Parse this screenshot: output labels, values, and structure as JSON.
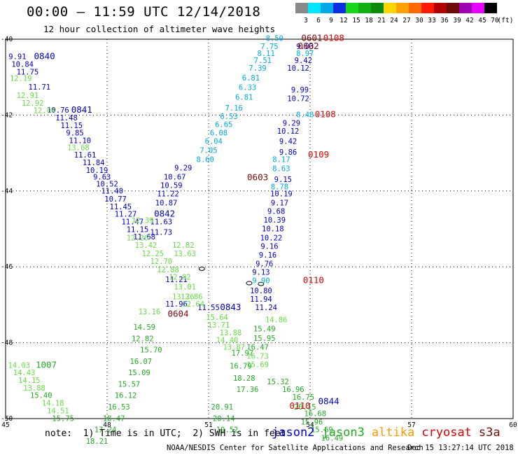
{
  "header": {
    "title": "00:00 – 11:59 UTC 12/14/2018",
    "subtitle": "12 hour collection of altimeter wave heights"
  },
  "colorbar": {
    "values": [
      "3",
      "6",
      "9",
      "12",
      "15",
      "18",
      "21",
      "24",
      "27",
      "30",
      "33",
      "36",
      "39",
      "42",
      "45",
      "70"
    ],
    "colors": [
      "#888888",
      "#00e5ff",
      "#00a8e8",
      "#0a2ee0",
      "#17d61a",
      "#0fae12",
      "#0a8a0c",
      "#ffd500",
      "#ffa200",
      "#ff6a00",
      "#ff1a00",
      "#b00000",
      "#6e0a0a",
      "#9e00b3",
      "#e600ff",
      "#000000"
    ],
    "unit": "(ft)"
  },
  "axes": {
    "lon_ticks": [
      {
        "value": 45,
        "label": "45"
      },
      {
        "value": 48,
        "label": "48"
      },
      {
        "value": 51,
        "label": "51"
      },
      {
        "value": 54,
        "label": "54"
      },
      {
        "value": 57,
        "label": "57"
      },
      {
        "value": 60,
        "label": "60"
      }
    ],
    "lat_ticks": [
      {
        "value": -40,
        "label": "-40"
      },
      {
        "value": -42,
        "label": "-42"
      },
      {
        "value": -44,
        "label": "-44"
      },
      {
        "value": -46,
        "label": "-46"
      },
      {
        "value": -48,
        "label": "-48"
      },
      {
        "value": -50,
        "label": "-50"
      }
    ],
    "lon_range": [
      45,
      60
    ],
    "lat_range": [
      -50,
      -40
    ]
  },
  "satellites": {
    "jason2": "#0000c8",
    "jason3": "#22aa22",
    "altika": "#ff9900",
    "cryosat": "#dd0000",
    "s3a": "#7a0a0a",
    "cyan": "#00aadd",
    "lightgreen": "#66dd44"
  },
  "tracks": [
    {
      "sat": "jason2",
      "time": "0840",
      "time_lon": 46.15,
      "time_lat": -40.53,
      "points": [
        {
          "lon": 45.35,
          "lat": -40.53,
          "v": "9.91"
        },
        {
          "lon": 45.5,
          "lat": -40.73,
          "v": "10.84"
        },
        {
          "lon": 45.65,
          "lat": -40.93,
          "v": "11.75"
        },
        {
          "lon": 46.0,
          "lat": -41.33,
          "v": "11.71"
        },
        {
          "lon": 46.55,
          "lat": -41.94,
          "v": "10.76"
        },
        {
          "lon": 46.8,
          "lat": -42.14,
          "v": "11.48"
        },
        {
          "lon": 46.95,
          "lat": -42.34,
          "v": "11.15"
        },
        {
          "lon": 47.05,
          "lat": -42.54,
          "v": "9.85"
        },
        {
          "lon": 47.2,
          "lat": -42.74,
          "v": "11.10"
        },
        {
          "lon": 47.35,
          "lat": -43.12,
          "v": "11.61"
        },
        {
          "lon": 47.6,
          "lat": -43.32,
          "v": "11.84"
        },
        {
          "lon": 47.7,
          "lat": -43.52,
          "v": "10.19"
        },
        {
          "lon": 47.85,
          "lat": -43.7,
          "v": "9.63"
        },
        {
          "lon": 48.0,
          "lat": -43.88,
          "v": "10.52"
        },
        {
          "lon": 48.15,
          "lat": -44.07,
          "v": "11.40"
        },
        {
          "lon": 48.25,
          "lat": -44.28,
          "v": "10.77"
        },
        {
          "lon": 48.4,
          "lat": -44.48,
          "v": "11.45"
        },
        {
          "lon": 48.55,
          "lat": -44.68,
          "v": "11.27"
        },
        {
          "lon": 48.75,
          "lat": -44.88,
          "v": "11.47"
        },
        {
          "lon": 48.9,
          "lat": -45.08,
          "v": "11.15"
        },
        {
          "lon": 49.1,
          "lat": -45.28,
          "v": "11.68"
        }
      ]
    },
    {
      "sat": "jason2",
      "time": "0841",
      "time_lon": 47.25,
      "time_lat": -41.94
    },
    {
      "sat": "jason2",
      "time": "0842",
      "time_lon": 49.7,
      "time_lat": -44.68
    },
    {
      "sat": "jason2",
      "time": "0843",
      "time_lon": 51.65,
      "time_lat": -47.14
    },
    {
      "sat": "jason2",
      "time": "0844",
      "time_lon": 54.55,
      "time_lat": -49.62
    },
    {
      "sat": "jason2_mid",
      "points": [
        {
          "lon": 50.05,
          "lat": -46.4,
          "v": "11.21"
        },
        {
          "lon": 50.05,
          "lat": -47.05,
          "v": "11.96"
        },
        {
          "lon": 51.0,
          "lat": -47.14,
          "v": "11.55"
        }
      ]
    },
    {
      "sat": "jason2_up",
      "points": [
        {
          "lon": 53.85,
          "lat": -40.26,
          "v": "9.03"
        },
        {
          "lon": 53.8,
          "lat": -40.63,
          "v": "9.42"
        },
        {
          "lon": 53.65,
          "lat": -40.83,
          "v": "10.12"
        },
        {
          "lon": 53.7,
          "lat": -41.4,
          "v": "9.99"
        },
        {
          "lon": 53.65,
          "lat": -41.63,
          "v": "10.72"
        },
        {
          "lon": 53.45,
          "lat": -42.28,
          "v": "9.29"
        },
        {
          "lon": 53.35,
          "lat": -42.49,
          "v": "10.12"
        },
        {
          "lon": 53.35,
          "lat": -42.76,
          "v": "9.42"
        },
        {
          "lon": 53.35,
          "lat": -43.04,
          "v": "9.86"
        },
        {
          "lon": 53.2,
          "lat": -43.76,
          "v": "9.15"
        },
        {
          "lon": 53.15,
          "lat": -44.14,
          "v": "10.19"
        },
        {
          "lon": 53.1,
          "lat": -44.38,
          "v": "9.17"
        },
        {
          "lon": 53.0,
          "lat": -44.6,
          "v": "9.68"
        },
        {
          "lon": 52.95,
          "lat": -44.83,
          "v": "10.39"
        },
        {
          "lon": 52.9,
          "lat": -45.06,
          "v": "10.18"
        },
        {
          "lon": 52.85,
          "lat": -45.3,
          "v": "10.22"
        },
        {
          "lon": 52.8,
          "lat": -45.53,
          "v": "9.16"
        },
        {
          "lon": 52.75,
          "lat": -45.76,
          "v": "9.16"
        },
        {
          "lon": 52.65,
          "lat": -45.99,
          "v": "9.76"
        },
        {
          "lon": 52.55,
          "lat": -46.21,
          "v": "9.13"
        },
        {
          "lon": 52.55,
          "lat": -46.7,
          "v": "10.80"
        },
        {
          "lon": 52.55,
          "lat": -46.92,
          "v": "11.94"
        },
        {
          "lon": 52.7,
          "lat": -47.14,
          "v": "11.24"
        }
      ]
    },
    {
      "sat": "cyan",
      "points": [
        {
          "lon": 52.95,
          "lat": -40.05,
          "v": "8.50"
        },
        {
          "lon": 52.8,
          "lat": -40.26,
          "v": "7.75"
        },
        {
          "lon": 52.7,
          "lat": -40.44,
          "v": "8.11"
        },
        {
          "lon": 52.6,
          "lat": -40.63,
          "v": "7.51"
        },
        {
          "lon": 52.45,
          "lat": -40.83,
          "v": "7.39"
        },
        {
          "lon": 52.25,
          "lat": -41.09,
          "v": "6.81"
        },
        {
          "lon": 52.15,
          "lat": -41.34,
          "v": "6.33"
        },
        {
          "lon": 52.05,
          "lat": -41.6,
          "v": "6.81"
        },
        {
          "lon": 51.75,
          "lat": -41.88,
          "v": "7.16"
        },
        {
          "lon": 51.6,
          "lat": -42.1,
          "v": "6.53"
        },
        {
          "lon": 51.45,
          "lat": -42.32,
          "v": "6.65"
        },
        {
          "lon": 51.3,
          "lat": -42.54,
          "v": "6.08"
        },
        {
          "lon": 51.15,
          "lat": -42.76,
          "v": "6.04"
        },
        {
          "lon": 51.0,
          "lat": -43.0,
          "v": "7.05"
        },
        {
          "lon": 50.9,
          "lat": -43.24,
          "v": "8.60"
        },
        {
          "lon": 53.85,
          "lat": -40.44,
          "v": "8.97"
        },
        {
          "lon": 53.85,
          "lat": -42.06,
          "v": "8.48"
        },
        {
          "lon": 53.15,
          "lat": -43.24,
          "v": "8.17"
        },
        {
          "lon": 53.15,
          "lat": -43.48,
          "v": "8.63"
        },
        {
          "lon": 53.1,
          "lat": -43.96,
          "v": "8.78"
        },
        {
          "lon": 52.55,
          "lat": -46.43,
          "v": "9.90"
        }
      ]
    },
    {
      "sat": "jason2_left",
      "points": [
        {
          "lon": 50.25,
          "lat": -43.46,
          "v": "9.29"
        },
        {
          "lon": 50.0,
          "lat": -43.7,
          "v": "10.67"
        },
        {
          "lon": 49.9,
          "lat": -43.92,
          "v": "10.59"
        },
        {
          "lon": 49.8,
          "lat": -44.14,
          "v": "11.22"
        },
        {
          "lon": 49.75,
          "lat": -44.38,
          "v": "10.87"
        },
        {
          "lon": 49.6,
          "lat": -44.88,
          "v": "11.63"
        },
        {
          "lon": 49.6,
          "lat": -45.16,
          "v": "11.73"
        }
      ]
    },
    {
      "sat": "lightgreen",
      "points": [
        {
          "lon": 45.45,
          "lat": -41.1,
          "v": "12.19"
        },
        {
          "lon": 45.65,
          "lat": -41.55,
          "v": "12.91"
        },
        {
          "lon": 45.8,
          "lat": -41.75,
          "v": "12.92"
        },
        {
          "lon": 46.15,
          "lat": -41.95,
          "v": "12.04"
        },
        {
          "lon": 47.15,
          "lat": -42.92,
          "v": "13.68"
        },
        {
          "lon": 49.05,
          "lat": -44.84,
          "v": "12.39"
        },
        {
          "lon": 48.9,
          "lat": -45.3,
          "v": "12.26"
        },
        {
          "lon": 49.15,
          "lat": -45.5,
          "v": "13.42"
        },
        {
          "lon": 49.35,
          "lat": -45.72,
          "v": "12.25"
        },
        {
          "lon": 49.6,
          "lat": -45.92,
          "v": "12.70"
        },
        {
          "lon": 49.8,
          "lat": -46.14,
          "v": "12.88"
        },
        {
          "lon": 50.15,
          "lat": -46.34,
          "v": "12.92"
        },
        {
          "lon": 50.25,
          "lat": -45.5,
          "v": "12.82"
        },
        {
          "lon": 50.3,
          "lat": -45.72,
          "v": "13.63"
        },
        {
          "lon": 50.3,
          "lat": -46.6,
          "v": "13.01"
        },
        {
          "lon": 50.25,
          "lat": -46.85,
          "v": "13.36"
        },
        {
          "lon": 50.5,
          "lat": -46.85,
          "v": "12.86"
        },
        {
          "lon": 50.55,
          "lat": -47.05,
          "v": "12.64"
        },
        {
          "lon": 49.25,
          "lat": -47.25,
          "v": "13.16"
        },
        {
          "lon": 51.25,
          "lat": -47.4,
          "v": "15.64"
        },
        {
          "lon": 51.3,
          "lat": -47.6,
          "v": "13.71"
        },
        {
          "lon": 51.65,
          "lat": -47.8,
          "v": "13.88"
        },
        {
          "lon": 51.55,
          "lat": -48.0,
          "v": "14.40"
        },
        {
          "lon": 51.75,
          "lat": -48.18,
          "v": "13.87"
        },
        {
          "lon": 45.4,
          "lat": -48.66,
          "v": "14.03"
        },
        {
          "lon": 45.55,
          "lat": -48.86,
          "v": "14.43"
        },
        {
          "lon": 45.7,
          "lat": -49.06,
          "v": "14.15"
        },
        {
          "lon": 45.85,
          "lat": -49.26,
          "v": "13.88"
        },
        {
          "lon": 46.4,
          "lat": -49.66,
          "v": "14.18"
        },
        {
          "lon": 46.55,
          "lat": -49.86,
          "v": "14.51"
        },
        {
          "lon": 52.45,
          "lat": -48.42,
          "v": "16.73"
        },
        {
          "lon": 52.45,
          "lat": -48.64,
          "v": "15.69"
        },
        {
          "lon": 53.0,
          "lat": -47.46,
          "v": "14.86"
        }
      ]
    },
    {
      "sat": "jason3",
      "points": [
        {
          "lon": 46.05,
          "lat": -49.46,
          "v": "15.40"
        },
        {
          "lon": 46.7,
          "lat": -50.06,
          "v": "15.75"
        },
        {
          "lon": 49.1,
          "lat": -47.66,
          "v": "14.59"
        },
        {
          "lon": 49.05,
          "lat": -47.96,
          "v": "12.82"
        },
        {
          "lon": 49.3,
          "lat": -48.26,
          "v": "15.70"
        },
        {
          "lon": 49.0,
          "lat": -48.56,
          "v": "16.07"
        },
        {
          "lon": 48.95,
          "lat": -48.86,
          "v": "15.09"
        },
        {
          "lon": 48.65,
          "lat": -49.16,
          "v": "15.57"
        },
        {
          "lon": 48.55,
          "lat": -49.46,
          "v": "16.12"
        },
        {
          "lon": 48.35,
          "lat": -49.76,
          "v": "16.53"
        },
        {
          "lon": 48.2,
          "lat": -50.06,
          "v": "18.47"
        },
        {
          "lon": 47.95,
          "lat": -50.36,
          "v": "17.24"
        },
        {
          "lon": 47.7,
          "lat": -50.66,
          "v": "18.21"
        },
        {
          "lon": 52.65,
          "lat": -47.7,
          "v": "15.49"
        },
        {
          "lon": 52.65,
          "lat": -47.95,
          "v": "15.95"
        },
        {
          "lon": 52.45,
          "lat": -48.18,
          "v": "16.47"
        },
        {
          "lon": 52.0,
          "lat": -48.34,
          "v": "17.97"
        },
        {
          "lon": 51.95,
          "lat": -48.68,
          "v": "16.79"
        },
        {
          "lon": 52.05,
          "lat": -49.0,
          "v": "18.28"
        },
        {
          "lon": 52.15,
          "lat": -49.3,
          "v": "17.36"
        },
        {
          "lon": 53.05,
          "lat": -49.1,
          "v": "15.32"
        },
        {
          "lon": 53.5,
          "lat": -49.3,
          "v": "16.96"
        },
        {
          "lon": 53.8,
          "lat": -49.5,
          "v": "16.75"
        },
        {
          "lon": 53.85,
          "lat": -49.76,
          "v": "20.15"
        },
        {
          "lon": 54.15,
          "lat": -49.94,
          "v": "16.68"
        },
        {
          "lon": 54.05,
          "lat": -50.16,
          "v": "15.96"
        },
        {
          "lon": 54.35,
          "lat": -50.36,
          "v": "15.69"
        },
        {
          "lon": 54.65,
          "lat": -50.58,
          "v": "16.49"
        },
        {
          "lon": 51.4,
          "lat": -49.76,
          "v": "20.91"
        },
        {
          "lon": 51.45,
          "lat": -50.06,
          "v": "20.14"
        },
        {
          "lon": 51.55,
          "lat": -50.36,
          "v": "19.52"
        }
      ]
    },
    {
      "sat": "jason3_label",
      "time": "1007",
      "time_lon": 46.2,
      "time_lat": -48.66
    },
    {
      "sat": "cryosat",
      "time": "0108",
      "time_lon": 54.7,
      "time_lat": -40.05
    },
    {
      "sat": "cryosat",
      "time": "0108",
      "time_lon": 54.45,
      "time_lat": -42.06
    },
    {
      "sat": "cryosat",
      "time": "0109",
      "time_lon": 54.25,
      "time_lat": -43.12
    },
    {
      "sat": "cryosat",
      "time": "0110",
      "time_lon": 54.1,
      "time_lat": -46.43
    },
    {
      "sat": "cryosat",
      "time": "0110",
      "time_lon": 53.7,
      "time_lat": -49.74
    },
    {
      "sat": "s3a",
      "time": "0601",
      "time_lon": 54.05,
      "time_lat": -40.05
    },
    {
      "sat": "s3a",
      "time": "0602",
      "time_lon": 53.95,
      "time_lat": -40.26
    },
    {
      "sat": "s3a",
      "time": "0603",
      "time_lon": 52.45,
      "time_lat": -43.72
    },
    {
      "sat": "s3a",
      "time": "0604",
      "time_lon": 50.1,
      "time_lat": -47.32
    }
  ],
  "note": {
    "text": "note:  1) Time is in UTC;  2) SWH is in feet",
    "legend": [
      {
        "name": "jason2",
        "color": "#0000c8"
      },
      {
        "name": "jason3",
        "color": "#22aa22"
      },
      {
        "name": "altika",
        "color": "#ff9900"
      },
      {
        "name": "cryosat",
        "color": "#dd0000"
      },
      {
        "name": "s3a",
        "color": "#7a0a0a"
      }
    ]
  },
  "footer": {
    "credit": "NOAA/NESDIS Center for Satellite Applications and Research",
    "timestamp": "Dec 15 13:27:14 UTC 2018"
  }
}
